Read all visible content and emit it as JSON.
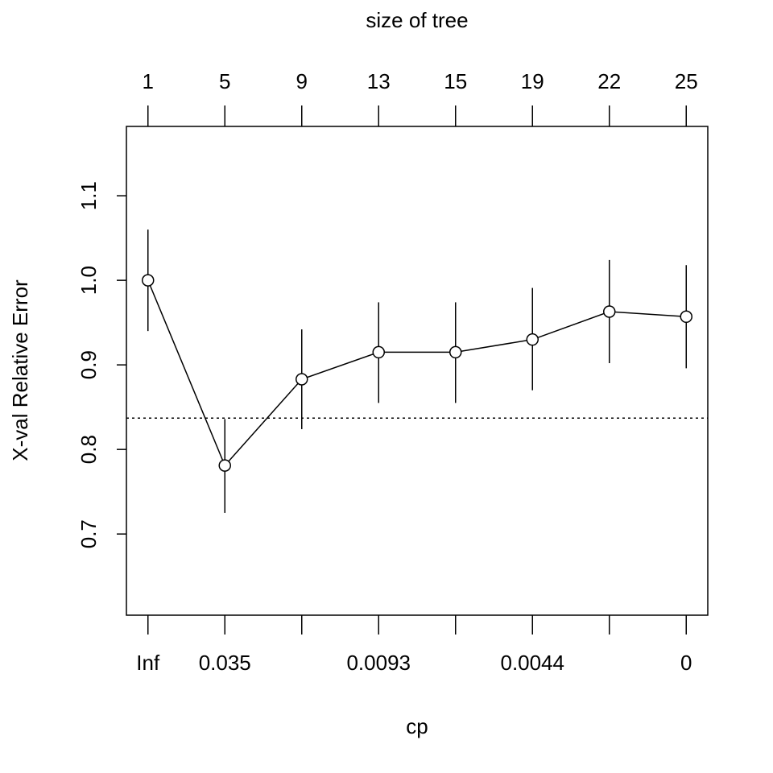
{
  "chart_data": {
    "type": "line",
    "title": "",
    "top_axis_label": "size of tree",
    "xlabel": "cp",
    "ylabel": "X-val Relative Error",
    "x": [
      1,
      2,
      3,
      4,
      5,
      6,
      7,
      8
    ],
    "size_of_tree": [
      "1",
      "5",
      "9",
      "13",
      "15",
      "19",
      "22",
      "25"
    ],
    "cp_labels": [
      "Inf",
      "0.035",
      "",
      "0.0093",
      "",
      "0.0044",
      "",
      "0"
    ],
    "values": [
      1.0,
      0.781,
      0.883,
      0.915,
      0.915,
      0.93,
      0.963,
      0.957
    ],
    "upper": [
      1.06,
      0.836,
      0.942,
      0.974,
      0.974,
      0.991,
      1.024,
      1.018
    ],
    "lower": [
      0.94,
      0.725,
      0.824,
      0.855,
      0.855,
      0.87,
      0.902,
      0.896
    ],
    "reference_line": 0.837,
    "yticks": [
      "0.7",
      "0.8",
      "0.9",
      "1.0",
      "1.1"
    ],
    "xlim": [
      0.72,
      8.28
    ],
    "ylim": [
      0.604,
      1.182
    ],
    "grid": false,
    "legend": "none"
  }
}
